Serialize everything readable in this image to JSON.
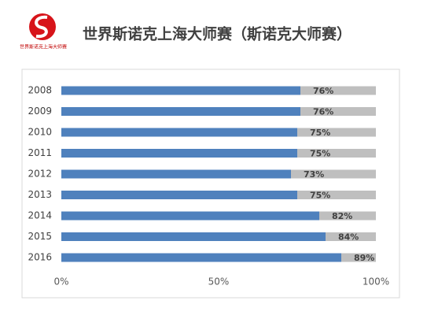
{
  "logo_text": "世界斯诺克上海大师赛",
  "chart_data": {
    "type": "bar",
    "orientation": "horizontal",
    "title": "世界斯诺克上海大师赛（斯诺克大师赛）",
    "categories": [
      "2008",
      "2009",
      "2010",
      "2011",
      "2012",
      "2013",
      "2014",
      "2015",
      "2016"
    ],
    "values": [
      76,
      76,
      75,
      75,
      73,
      75,
      82,
      84,
      89
    ],
    "value_labels": [
      "76%",
      "76%",
      "75%",
      "75%",
      "73%",
      "75%",
      "82%",
      "84%",
      "89%"
    ],
    "color": "#4f81bd",
    "track_color": "#bfbfbf",
    "xlim": [
      0,
      100
    ],
    "xticks": [
      {
        "value": 0,
        "label": "0%"
      },
      {
        "value": 50,
        "label": "50%"
      },
      {
        "value": 100,
        "label": "100%"
      }
    ],
    "grid": false
  }
}
